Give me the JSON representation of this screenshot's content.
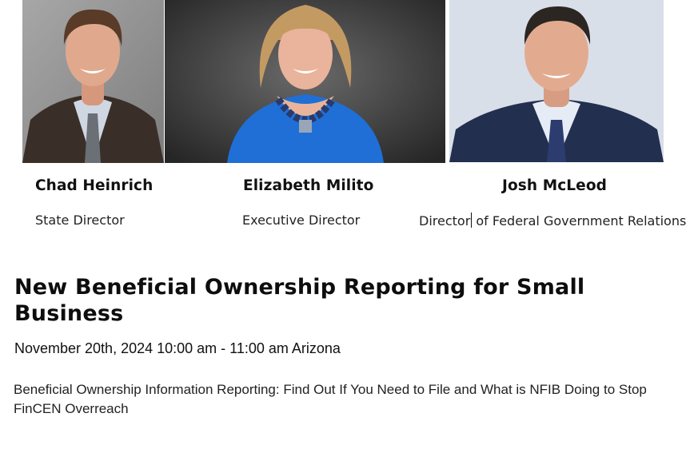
{
  "speakers": [
    {
      "name": "Chad Heinrich",
      "title": "State Director",
      "photo_icon": "speaker-photo-icon",
      "colors": {
        "bg": "#8f8f8f",
        "suit": "#3a2f28",
        "shirt": "#cfd7e2",
        "tie": "#6b6f76",
        "skin": "#e0a98e",
        "hair": "#5a3b27"
      }
    },
    {
      "name": "Elizabeth Milito",
      "title": "Executive Director",
      "photo_icon": "speaker-photo-icon",
      "colors": {
        "bg": "#3b3b3b",
        "dress": "#1f6fd6",
        "necklace": "#2a3a6a",
        "skin": "#e9b49b",
        "hair": "#c49a63"
      }
    },
    {
      "name": "Josh McLeod",
      "title_before_caret": "Director",
      "title_after_caret": " of Federal Government Relations",
      "photo_icon": "speaker-photo-icon",
      "colors": {
        "bg": "#d9dfe9",
        "suit": "#232f4f",
        "shirt": "#e6ecf5",
        "tie": "#2c3c6e",
        "skin": "#e2ab90",
        "hair": "#2c2622"
      }
    }
  ],
  "event": {
    "title": "New Beneficial Ownership Reporting for Small Business",
    "datetime": "November 20th, 2024 10:00 am - 11:00 am Arizona",
    "description": "Beneficial Ownership Information Reporting: Find Out If You Need to File and What is NFIB Doing to Stop FinCEN Overreach"
  }
}
